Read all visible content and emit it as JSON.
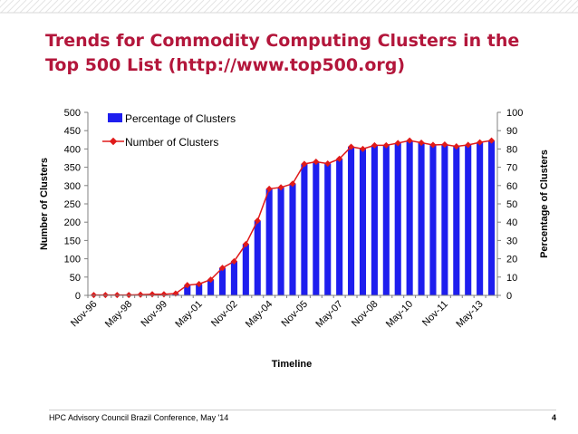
{
  "slide": {
    "title": "Trends for Commodity Computing Clusters in the Top 500 List (http://www.top500.org)",
    "footer_text": "HPC Advisory Council Brazil Conference, May '14",
    "page_number": "4"
  },
  "colors": {
    "title": "#b3163b",
    "bar_fill": "#1e1eee",
    "line": "#e01a1a",
    "marker": "#e01a1a"
  },
  "chart_data": {
    "type": "bar",
    "xlabel": "Timeline",
    "ylabel_left": "Number of Clusters",
    "ylabel_right": "Percentage of Clusters",
    "ylim_left": [
      0,
      500
    ],
    "ylim_right": [
      0,
      100
    ],
    "yticks_left": [
      "0",
      "50",
      "100",
      "150",
      "200",
      "250",
      "300",
      "350",
      "400",
      "450",
      "500"
    ],
    "yticks_right": [
      "0",
      "10",
      "20",
      "30",
      "40",
      "50",
      "60",
      "70",
      "80",
      "90",
      "100"
    ],
    "x_tick_labels": [
      "Nov-96",
      "May-98",
      "Nov-99",
      "May-01",
      "Nov-02",
      "May-04",
      "Nov-05",
      "May-07",
      "Nov-08",
      "May-10",
      "Nov-11",
      "May-13"
    ],
    "x_tick_positions": [
      0,
      3,
      6,
      9,
      12,
      15,
      18,
      21,
      24,
      27,
      30,
      33
    ],
    "grid": false,
    "legend_position": "top-left",
    "series": [
      {
        "name": "Percentage of Clusters",
        "kind": "bar",
        "axis": "right",
        "values": [
          0.2,
          0.2,
          0.2,
          0.2,
          0.4,
          0.6,
          0.6,
          1.0,
          5.6,
          6.2,
          8.6,
          15.0,
          18.6,
          28.0,
          40.8,
          58.2,
          59.0,
          61.0,
          71.8,
          73.0,
          72.0,
          74.6,
          81.2,
          80.0,
          82.0,
          82.0,
          83.2,
          84.6,
          83.4,
          82.2,
          82.4,
          81.4,
          82.2,
          83.6,
          84.6
        ]
      },
      {
        "name": "Number of Clusters",
        "kind": "line",
        "axis": "left",
        "values": [
          1,
          1,
          1,
          1,
          2,
          3,
          3,
          5,
          28,
          31,
          43,
          75,
          93,
          140,
          204,
          291,
          295,
          305,
          359,
          365,
          360,
          373,
          406,
          400,
          410,
          410,
          416,
          423,
          417,
          411,
          412,
          407,
          411,
          418,
          423
        ]
      }
    ]
  }
}
